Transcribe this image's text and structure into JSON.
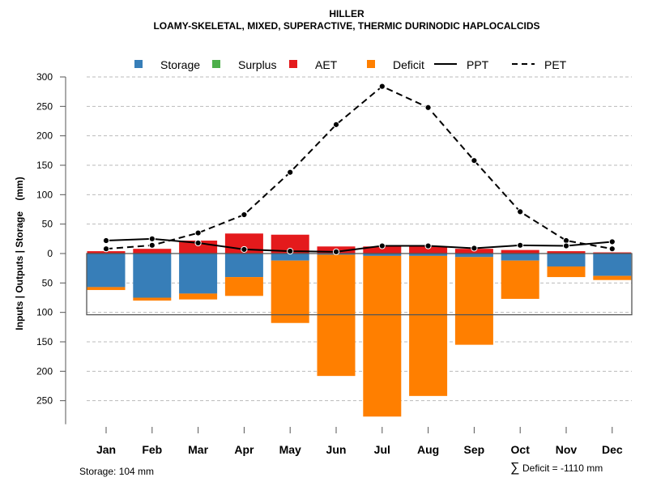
{
  "chart_data": {
    "type": "bar",
    "title": "HILLER",
    "subtitle": "LOAMY-SKELETAL, MIXED, SUPERACTIVE, THERMIC DURINODIC HAPLOCALCIDS",
    "ylabel": "Inputs | Outputs | Storage    (mm)",
    "xlabel": "",
    "categories": [
      "Jan",
      "Feb",
      "Mar",
      "Apr",
      "May",
      "Jun",
      "Jul",
      "Aug",
      "Sep",
      "Oct",
      "Nov",
      "Dec"
    ],
    "ylim": [
      -300,
      300
    ],
    "yticks": [
      300,
      250,
      200,
      150,
      100,
      50,
      0,
      -50,
      -100,
      -150,
      -200,
      -250
    ],
    "ytick_labels": [
      "300",
      "250",
      "200",
      "150",
      "100",
      "50",
      "0",
      "50",
      "100",
      "150",
      "200",
      "250"
    ],
    "grid": true,
    "legend_position": "top",
    "legend": [
      {
        "label": "Storage",
        "kind": "box",
        "color": "#377EB8"
      },
      {
        "label": "Surplus",
        "kind": "box",
        "color": "#4DAF4A"
      },
      {
        "label": "AET",
        "kind": "box",
        "color": "#E41A1C"
      },
      {
        "label": "Deficit",
        "kind": "box",
        "color": "#FF7F00"
      },
      {
        "label": "PPT",
        "kind": "solid-line",
        "color": "#000000"
      },
      {
        "label": "PET",
        "kind": "dashed-line",
        "color": "#000000"
      }
    ],
    "series": [
      {
        "name": "AET",
        "color": "#E41A1C",
        "values": [
          4,
          8,
          22,
          34,
          32,
          12,
          12,
          12,
          8,
          6,
          4,
          2
        ]
      },
      {
        "name": "Surplus",
        "color": "#4DAF4A",
        "values": [
          0,
          0,
          0,
          0,
          0,
          0,
          0,
          0,
          0,
          0,
          0,
          0
        ]
      },
      {
        "name": "Storage",
        "color": "#377EB8",
        "values": [
          -57,
          -75,
          -68,
          -40,
          -12,
          -2,
          -4,
          -4,
          -6,
          -12,
          -22,
          -38
        ]
      },
      {
        "name": "Deficit",
        "color": "#FF7F00",
        "values": [
          -5,
          -5,
          -10,
          -32,
          -106,
          -206,
          -273,
          -238,
          -149,
          -65,
          -18,
          -7
        ]
      },
      {
        "name": "PPT",
        "type": "line",
        "style": "solid",
        "color": "#000000",
        "values": [
          22,
          25,
          18,
          7,
          4,
          3,
          13,
          13,
          9,
          14,
          13,
          20
        ]
      },
      {
        "name": "PET",
        "type": "line",
        "style": "dashed",
        "color": "#000000",
        "values": [
          8,
          14,
          35,
          66,
          138,
          219,
          284,
          248,
          158,
          71,
          22,
          8
        ]
      }
    ],
    "storage_capacity": 104,
    "annotations": {
      "storage": "Storage: 104 mm",
      "deficit_sum": "Deficit = -1110 mm",
      "deficit_symbol": "∑"
    }
  }
}
